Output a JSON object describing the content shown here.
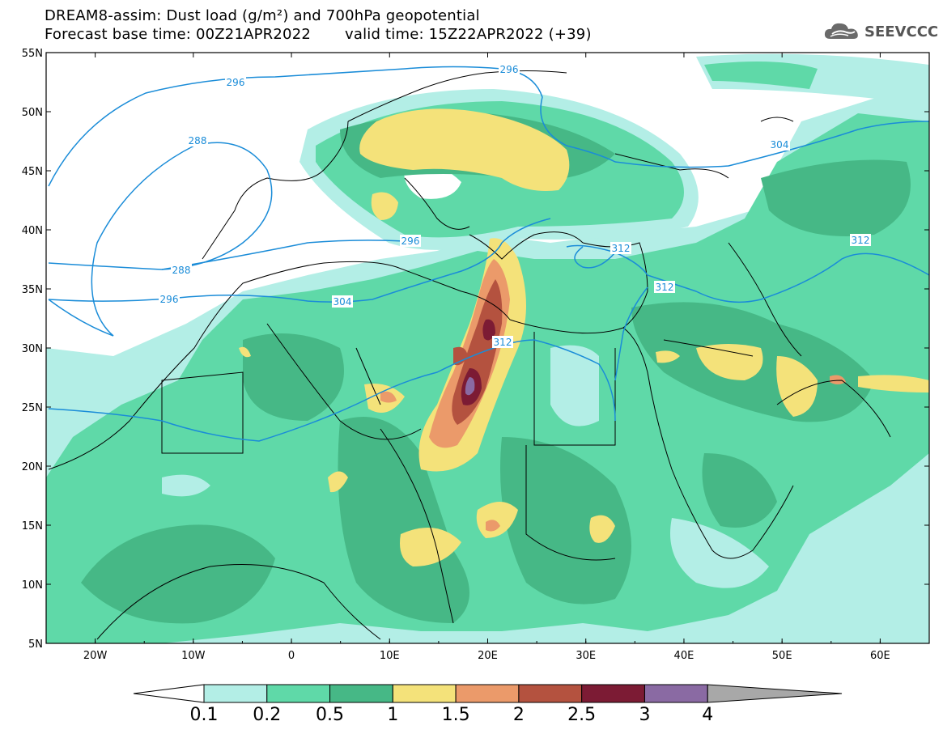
{
  "title": {
    "line1": "DREAM8-assim: Dust load (g/m²) and 700hPa geopotential",
    "base_time": "Forecast base time: 00Z21APR2022",
    "valid_time": "valid time: 15Z22APR2022 (+39)"
  },
  "logo": {
    "text": "SEEVCCC",
    "icon": "cloud-icon"
  },
  "map": {
    "lon_range": [
      -25,
      65
    ],
    "lat_range": [
      5,
      55
    ],
    "lat_labels": [
      "55N",
      "50N",
      "45N",
      "40N",
      "35N",
      "30N",
      "25N",
      "20N",
      "15N",
      "10N",
      "5N"
    ],
    "lon_labels": [
      "20W",
      "10W",
      "0",
      "10E",
      "20E",
      "30E",
      "40E",
      "50E",
      "60E"
    ],
    "contour_labels": [
      "296",
      "296",
      "288",
      "288",
      "296",
      "296",
      "304",
      "304",
      "312",
      "312",
      "312",
      "312"
    ]
  },
  "colorbar": {
    "levels": [
      "0.1",
      "0.2",
      "0.5",
      "1",
      "1.5",
      "2",
      "2.5",
      "3",
      "4"
    ],
    "colors": [
      "#b3eee6",
      "#5fd9a8",
      "#46b886",
      "#f4e27a",
      "#eb9a6a",
      "#b4523f",
      "#7c1b34",
      "#8a6aa3",
      "#a8a8a8"
    ]
  }
}
